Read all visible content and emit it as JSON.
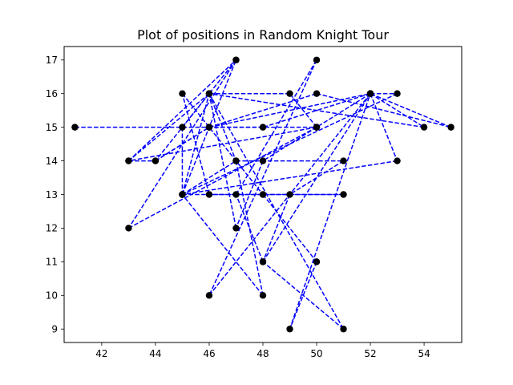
{
  "chart_data": {
    "type": "line",
    "title": "Plot of positions in Random Knight Tour",
    "xlabel": "",
    "ylabel": "",
    "xlim": [
      40.6,
      55.4
    ],
    "ylim": [
      8.6,
      17.4
    ],
    "x_ticks": [
      42,
      44,
      46,
      48,
      50,
      52,
      54
    ],
    "y_ticks": [
      9,
      10,
      11,
      12,
      13,
      14,
      15,
      16,
      17
    ],
    "grid": false,
    "legend": "none",
    "line_color": "#0000ff",
    "line_style": "dashed",
    "marker_color": "#000000",
    "path": [
      [
        41,
        15
      ],
      [
        50,
        15
      ],
      [
        48,
        14
      ],
      [
        47,
        12
      ],
      [
        46,
        16
      ],
      [
        45,
        15
      ],
      [
        45,
        13
      ],
      [
        47,
        14
      ],
      [
        51,
        14
      ],
      [
        49,
        13
      ],
      [
        48,
        11
      ],
      [
        52,
        16
      ],
      [
        48,
        15
      ],
      [
        46,
        15
      ],
      [
        50,
        16
      ],
      [
        55,
        15
      ],
      [
        52,
        16
      ],
      [
        50,
        15
      ],
      [
        43,
        14
      ],
      [
        44,
        14
      ],
      [
        46,
        15
      ],
      [
        52,
        16
      ],
      [
        53,
        16
      ],
      [
        45,
        13
      ],
      [
        51,
        13
      ],
      [
        46,
        13
      ],
      [
        45,
        16
      ],
      [
        48,
        13
      ],
      [
        50,
        11
      ],
      [
        49,
        9
      ],
      [
        52,
        16
      ],
      [
        54,
        15
      ],
      [
        46,
        16
      ],
      [
        47,
        14
      ],
      [
        48,
        10
      ],
      [
        45,
        13
      ],
      [
        47,
        17
      ],
      [
        43,
        12
      ],
      [
        50,
        15
      ],
      [
        49,
        16
      ],
      [
        46,
        16
      ],
      [
        51,
        9
      ],
      [
        48,
        11
      ],
      [
        47,
        13
      ],
      [
        50,
        17
      ],
      [
        46,
        10
      ],
      [
        52,
        16
      ],
      [
        53,
        14
      ],
      [
        45,
        13
      ],
      [
        46,
        16
      ],
      [
        43,
        14
      ],
      [
        47,
        17
      ],
      [
        44,
        14
      ],
      [
        46,
        15
      ]
    ]
  }
}
